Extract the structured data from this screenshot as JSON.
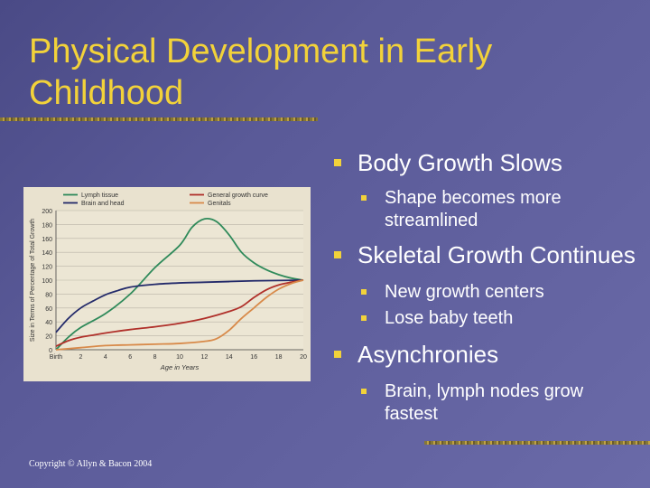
{
  "title": "Physical Development in Early Childhood",
  "bullets": [
    {
      "text": "Body Growth Slows",
      "sub": [
        "Shape becomes more streamlined"
      ]
    },
    {
      "text": "Skeletal Growth Continues",
      "sub": [
        "New growth centers",
        "Lose baby teeth"
      ]
    },
    {
      "text": "Asynchronies",
      "sub": [
        "Brain, lymph nodes grow fastest"
      ]
    }
  ],
  "copyright": "Copyright © Allyn & Bacon 2004",
  "colors": {
    "title": "#f2d23a",
    "bullet": "#f2d23a",
    "text": "#ffffff"
  },
  "chart_data": {
    "type": "line",
    "xlabel": "Age in Years",
    "ylabel": "Size in Terms of Percentage of Total Growth",
    "xlim": [
      0,
      20
    ],
    "ylim": [
      0,
      200
    ],
    "xticks": [
      "Birth",
      "2",
      "4",
      "6",
      "8",
      "10",
      "12",
      "14",
      "16",
      "18",
      "20"
    ],
    "yticks": [
      0,
      20,
      40,
      60,
      80,
      100,
      120,
      140,
      160,
      180,
      200
    ],
    "series": [
      {
        "name": "Lymph tissue",
        "color": "#2f8a5a",
        "points": [
          [
            0,
            0
          ],
          [
            1,
            18
          ],
          [
            2,
            32
          ],
          [
            4,
            52
          ],
          [
            6,
            80
          ],
          [
            8,
            118
          ],
          [
            10,
            150
          ],
          [
            11,
            176
          ],
          [
            12,
            188
          ],
          [
            13,
            184
          ],
          [
            14,
            165
          ],
          [
            15,
            140
          ],
          [
            16,
            125
          ],
          [
            17,
            115
          ],
          [
            18,
            108
          ],
          [
            19,
            103
          ],
          [
            20,
            100
          ]
        ]
      },
      {
        "name": "Brain and head",
        "color": "#232a6a",
        "points": [
          [
            0,
            25
          ],
          [
            1,
            45
          ],
          [
            2,
            60
          ],
          [
            3,
            70
          ],
          [
            4,
            79
          ],
          [
            5,
            85
          ],
          [
            6,
            90
          ],
          [
            8,
            94
          ],
          [
            10,
            96
          ],
          [
            12,
            97
          ],
          [
            14,
            98
          ],
          [
            16,
            99
          ],
          [
            18,
            99.5
          ],
          [
            20,
            100
          ]
        ]
      },
      {
        "name": "General growth curve",
        "color": "#b0302a",
        "points": [
          [
            0,
            5
          ],
          [
            1,
            13
          ],
          [
            2,
            18
          ],
          [
            3,
            21
          ],
          [
            4,
            24
          ],
          [
            6,
            29
          ],
          [
            8,
            33
          ],
          [
            10,
            38
          ],
          [
            12,
            45
          ],
          [
            14,
            55
          ],
          [
            15,
            62
          ],
          [
            16,
            75
          ],
          [
            17,
            86
          ],
          [
            18,
            93
          ],
          [
            19,
            97
          ],
          [
            20,
            100
          ]
        ]
      },
      {
        "name": "Genitals",
        "color": "#d88a4a",
        "points": [
          [
            0,
            0
          ],
          [
            2,
            3
          ],
          [
            4,
            6
          ],
          [
            6,
            7
          ],
          [
            8,
            8
          ],
          [
            10,
            9
          ],
          [
            12,
            12
          ],
          [
            13,
            16
          ],
          [
            14,
            28
          ],
          [
            15,
            45
          ],
          [
            16,
            60
          ],
          [
            17,
            75
          ],
          [
            18,
            87
          ],
          [
            19,
            95
          ],
          [
            20,
            100
          ]
        ]
      }
    ]
  }
}
